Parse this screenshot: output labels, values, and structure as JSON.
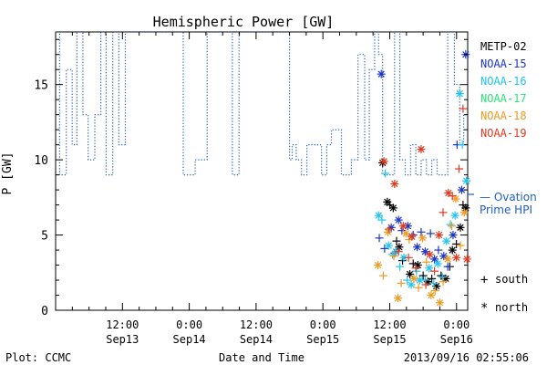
{
  "footer": {
    "plot_credit": "Plot: CCMC",
    "timestamp": "2013/09/16 02:55:06"
  },
  "marker_key": {
    "south_symbol": "+",
    "south_label": "south",
    "north_symbol": "*",
    "north_label": "north"
  },
  "colors": {
    "axis": "#000000",
    "ovation": "#1f5fbf",
    "METP-02": "#000000",
    "NOAA-15": "#1c36c8",
    "NOAA-16": "#22c4ee",
    "NOAA-17": "#2ee07a",
    "NOAA-18": "#ee9a20",
    "NOAA-19": "#e03a20"
  },
  "chart_data": {
    "type": "line",
    "title": "Hemispheric Power [GW]",
    "xlabel": "Date and Time",
    "ylabel": "P [GW]",
    "xlim": [
      0,
      62
    ],
    "ylim": [
      0,
      18.5
    ],
    "grid": false,
    "y_ticks": [
      0,
      5,
      10,
      15
    ],
    "x_ticks": [
      {
        "x": 12,
        "line1": "12:00",
        "line2": "Sep13"
      },
      {
        "x": 24,
        "line1": "0:00",
        "line2": "Sep14"
      },
      {
        "x": 36,
        "line1": "12:00",
        "line2": "Sep14"
      },
      {
        "x": 48,
        "line1": "0:00",
        "line2": "Sep15"
      },
      {
        "x": 60,
        "line1": "12:00",
        "line2": "Sep15"
      },
      {
        "x": 72,
        "line1": "0:00",
        "line2": "Sep16"
      }
    ],
    "legend_position": "right",
    "legend": [
      "METP-02",
      "NOAA-15",
      "NOAA-16",
      "NOAA-17",
      "NOAA-18",
      "NOAA-19"
    ],
    "ovation_label_line1": "— Ovation",
    "ovation_label_line2": "Prime HPI",
    "ovation_line": [
      {
        "x": 0.0,
        "y": 18.5
      },
      {
        "x": 0.6,
        "y": 18.5
      },
      {
        "x": 0.6,
        "y": 9.0
      },
      {
        "x": 1.6,
        "y": 9.0
      },
      {
        "x": 1.6,
        "y": 16.0
      },
      {
        "x": 2.5,
        "y": 16.0
      },
      {
        "x": 2.5,
        "y": 11.0
      },
      {
        "x": 3.2,
        "y": 11.0
      },
      {
        "x": 3.2,
        "y": 18.5
      },
      {
        "x": 4.1,
        "y": 18.5
      },
      {
        "x": 4.1,
        "y": 13.0
      },
      {
        "x": 4.9,
        "y": 13.0
      },
      {
        "x": 4.9,
        "y": 10.0
      },
      {
        "x": 5.9,
        "y": 10.0
      },
      {
        "x": 5.9,
        "y": 13.0
      },
      {
        "x": 6.8,
        "y": 13.0
      },
      {
        "x": 6.8,
        "y": 18.5
      },
      {
        "x": 7.6,
        "y": 18.5
      },
      {
        "x": 7.6,
        "y": 9.0
      },
      {
        "x": 8.6,
        "y": 9.0
      },
      {
        "x": 8.6,
        "y": 18.5
      },
      {
        "x": 9.5,
        "y": 18.5
      },
      {
        "x": 9.5,
        "y": 11.0
      },
      {
        "x": 10.5,
        "y": 11.0
      },
      {
        "x": 10.5,
        "y": 18.5
      },
      {
        "x": 11.4,
        "y": 18.5
      },
      {
        "x": 11.4,
        "y": 18.5
      },
      {
        "x": 19.2,
        "y": 18.5
      },
      {
        "x": 19.2,
        "y": 9.0
      },
      {
        "x": 21.0,
        "y": 9.0
      },
      {
        "x": 21.0,
        "y": 10.0
      },
      {
        "x": 22.8,
        "y": 10.0
      },
      {
        "x": 22.8,
        "y": 18.5
      },
      {
        "x": 26.6,
        "y": 18.5
      },
      {
        "x": 26.6,
        "y": 9.0
      },
      {
        "x": 27.6,
        "y": 9.0
      },
      {
        "x": 27.6,
        "y": 18.5
      },
      {
        "x": 35.2,
        "y": 18.5
      },
      {
        "x": 35.2,
        "y": 10.0
      },
      {
        "x": 35.6,
        "y": 10.0
      },
      {
        "x": 35.6,
        "y": 11.0
      },
      {
        "x": 36.2,
        "y": 11.0
      },
      {
        "x": 36.2,
        "y": 10.0
      },
      {
        "x": 37.0,
        "y": 10.0
      },
      {
        "x": 37.0,
        "y": 9.0
      },
      {
        "x": 37.8,
        "y": 9.0
      },
      {
        "x": 37.8,
        "y": 11.0
      },
      {
        "x": 40.0,
        "y": 11.0
      },
      {
        "x": 40.0,
        "y": 9.0
      },
      {
        "x": 40.8,
        "y": 9.0
      },
      {
        "x": 40.8,
        "y": 11.0
      },
      {
        "x": 41.5,
        "y": 11.0
      },
      {
        "x": 41.5,
        "y": 12.0
      },
      {
        "x": 43.0,
        "y": 12.0
      },
      {
        "x": 43.0,
        "y": 9.0
      },
      {
        "x": 44.5,
        "y": 9.0
      },
      {
        "x": 44.5,
        "y": 10.0
      },
      {
        "x": 45.5,
        "y": 10.0
      },
      {
        "x": 45.5,
        "y": 17.0
      },
      {
        "x": 46.5,
        "y": 17.0
      },
      {
        "x": 46.5,
        "y": 10.0
      },
      {
        "x": 47.2,
        "y": 10.0
      },
      {
        "x": 47.2,
        "y": 16.0
      },
      {
        "x": 48.0,
        "y": 16.0
      },
      {
        "x": 48.0,
        "y": 18.5
      },
      {
        "x": 48.6,
        "y": 18.5
      },
      {
        "x": 48.6,
        "y": 17.0
      },
      {
        "x": 49.2,
        "y": 17.0
      },
      {
        "x": 49.2,
        "y": 9.0
      },
      {
        "x": 51.0,
        "y": 9.0
      },
      {
        "x": 51.0,
        "y": 18.5
      },
      {
        "x": 51.8,
        "y": 18.5
      },
      {
        "x": 51.8,
        "y": 10.0
      },
      {
        "x": 52.6,
        "y": 10.0
      },
      {
        "x": 52.6,
        "y": 9.0
      },
      {
        "x": 53.4,
        "y": 9.0
      },
      {
        "x": 53.4,
        "y": 11.0
      },
      {
        "x": 54.2,
        "y": 11.0
      },
      {
        "x": 54.2,
        "y": 9.0
      },
      {
        "x": 55.0,
        "y": 9.0
      },
      {
        "x": 55.0,
        "y": 10.0
      },
      {
        "x": 55.8,
        "y": 10.0
      },
      {
        "x": 55.8,
        "y": 9.0
      },
      {
        "x": 56.6,
        "y": 9.0
      },
      {
        "x": 56.6,
        "y": 10.0
      },
      {
        "x": 57.4,
        "y": 10.0
      },
      {
        "x": 57.4,
        "y": 9.0
      },
      {
        "x": 59.0,
        "y": 9.0
      },
      {
        "x": 59.0,
        "y": 18.5
      },
      {
        "x": 60.0,
        "y": 18.5
      },
      {
        "x": 60.0,
        "y": 15.0
      },
      {
        "x": 60.8,
        "y": 15.0
      },
      {
        "x": 60.8,
        "y": 11.0
      },
      {
        "x": 61.4,
        "y": 11.0
      },
      {
        "x": 61.4,
        "y": 13.0
      },
      {
        "x": 62.0,
        "y": 13.0
      }
    ],
    "series": [
      {
        "name": "METP-02",
        "points": [
          {
            "x": 49.2,
            "y": 9.8,
            "hemisphere": "north"
          },
          {
            "x": 49.9,
            "y": 7.2,
            "hemisphere": "north"
          },
          {
            "x": 50.3,
            "y": 7.0,
            "hemisphere": "south"
          },
          {
            "x": 50.8,
            "y": 6.8,
            "hemisphere": "north"
          },
          {
            "x": 51.3,
            "y": 4.6,
            "hemisphere": "south"
          },
          {
            "x": 51.7,
            "y": 4.2,
            "hemisphere": "north"
          },
          {
            "x": 52.2,
            "y": 3.3,
            "hemisphere": "south"
          },
          {
            "x": 53.3,
            "y": 2.4,
            "hemisphere": "north"
          },
          {
            "x": 53.8,
            "y": 3.1,
            "hemisphere": "south"
          },
          {
            "x": 54.5,
            "y": 3.0,
            "hemisphere": "north"
          },
          {
            "x": 55.3,
            "y": 2.3,
            "hemisphere": "south"
          },
          {
            "x": 56.0,
            "y": 1.9,
            "hemisphere": "north"
          },
          {
            "x": 56.6,
            "y": 2.1,
            "hemisphere": "south"
          },
          {
            "x": 57.3,
            "y": 1.6,
            "hemisphere": "north"
          },
          {
            "x": 58.0,
            "y": 2.3,
            "hemisphere": "south"
          },
          {
            "x": 58.7,
            "y": 2.1,
            "hemisphere": "north"
          },
          {
            "x": 59.3,
            "y": 2.9,
            "hemisphere": "south"
          },
          {
            "x": 59.7,
            "y": 4.0,
            "hemisphere": "north"
          },
          {
            "x": 60.3,
            "y": 4.4,
            "hemisphere": "south"
          },
          {
            "x": 60.9,
            "y": 5.5,
            "hemisphere": "north"
          },
          {
            "x": 61.3,
            "y": 7.0,
            "hemisphere": "south"
          },
          {
            "x": 61.7,
            "y": 6.8,
            "hemisphere": "north"
          }
        ]
      },
      {
        "name": "NOAA-15",
        "points": [
          {
            "x": 48.7,
            "y": 4.8,
            "hemisphere": "south"
          },
          {
            "x": 49.0,
            "y": 15.7,
            "hemisphere": "north"
          },
          {
            "x": 49.5,
            "y": 4.1,
            "hemisphere": "south"
          },
          {
            "x": 50.5,
            "y": 5.5,
            "hemisphere": "north"
          },
          {
            "x": 51.0,
            "y": 3.8,
            "hemisphere": "south"
          },
          {
            "x": 51.6,
            "y": 6.0,
            "hemisphere": "north"
          },
          {
            "x": 52.1,
            "y": 5.3,
            "hemisphere": "south"
          },
          {
            "x": 53.0,
            "y": 5.6,
            "hemisphere": "north"
          },
          {
            "x": 53.8,
            "y": 5.0,
            "hemisphere": "south"
          },
          {
            "x": 54.4,
            "y": 4.2,
            "hemisphere": "north"
          },
          {
            "x": 55.0,
            "y": 5.2,
            "hemisphere": "south"
          },
          {
            "x": 55.6,
            "y": 3.9,
            "hemisphere": "north"
          },
          {
            "x": 56.4,
            "y": 5.1,
            "hemisphere": "south"
          },
          {
            "x": 57.0,
            "y": 3.4,
            "hemisphere": "north"
          },
          {
            "x": 57.6,
            "y": 4.0,
            "hemisphere": "south"
          },
          {
            "x": 58.4,
            "y": 3.6,
            "hemisphere": "north"
          },
          {
            "x": 59.0,
            "y": 2.9,
            "hemisphere": "south"
          },
          {
            "x": 59.8,
            "y": 5.0,
            "hemisphere": "north"
          },
          {
            "x": 60.4,
            "y": 11.0,
            "hemisphere": "south"
          },
          {
            "x": 61.1,
            "y": 8.0,
            "hemisphere": "north"
          },
          {
            "x": 61.7,
            "y": 17.0,
            "hemisphere": "north"
          }
        ]
      },
      {
        "name": "NOAA-16",
        "points": [
          {
            "x": 48.6,
            "y": 6.3,
            "hemisphere": "north"
          },
          {
            "x": 49.1,
            "y": 6.0,
            "hemisphere": "south"
          },
          {
            "x": 49.6,
            "y": 9.1,
            "hemisphere": "south"
          },
          {
            "x": 50.1,
            "y": 4.3,
            "hemisphere": "north"
          },
          {
            "x": 50.7,
            "y": 3.7,
            "hemisphere": "south"
          },
          {
            "x": 51.2,
            "y": 3.9,
            "hemisphere": "north"
          },
          {
            "x": 51.8,
            "y": 2.9,
            "hemisphere": "south"
          },
          {
            "x": 52.4,
            "y": 3.5,
            "hemisphere": "north"
          },
          {
            "x": 52.9,
            "y": 2.0,
            "hemisphere": "south"
          },
          {
            "x": 53.5,
            "y": 1.7,
            "hemisphere": "north"
          },
          {
            "x": 54.3,
            "y": 2.6,
            "hemisphere": "south"
          },
          {
            "x": 54.8,
            "y": 2.0,
            "hemisphere": "north"
          },
          {
            "x": 55.6,
            "y": 2.0,
            "hemisphere": "south"
          },
          {
            "x": 56.2,
            "y": 2.8,
            "hemisphere": "north"
          },
          {
            "x": 56.9,
            "y": 1.8,
            "hemisphere": "south"
          },
          {
            "x": 57.5,
            "y": 3.1,
            "hemisphere": "north"
          },
          {
            "x": 58.2,
            "y": 2.2,
            "hemisphere": "south"
          },
          {
            "x": 58.8,
            "y": 4.6,
            "hemisphere": "north"
          },
          {
            "x": 59.4,
            "y": 5.7,
            "hemisphere": "south"
          },
          {
            "x": 60.1,
            "y": 6.3,
            "hemisphere": "north"
          },
          {
            "x": 60.8,
            "y": 14.4,
            "hemisphere": "north"
          },
          {
            "x": 61.2,
            "y": 11.0,
            "hemisphere": "south"
          },
          {
            "x": 61.8,
            "y": 8.6,
            "hemisphere": "north"
          }
        ]
      },
      {
        "name": "NOAA-18",
        "points": [
          {
            "x": 48.5,
            "y": 3.0,
            "hemisphere": "north"
          },
          {
            "x": 49.3,
            "y": 2.3,
            "hemisphere": "south"
          },
          {
            "x": 50.0,
            "y": 5.2,
            "hemisphere": "north"
          },
          {
            "x": 50.9,
            "y": 3.6,
            "hemisphere": "south"
          },
          {
            "x": 51.5,
            "y": 0.8,
            "hemisphere": "north"
          },
          {
            "x": 52.0,
            "y": 1.8,
            "hemisphere": "south"
          },
          {
            "x": 52.7,
            "y": 5.1,
            "hemisphere": "north"
          },
          {
            "x": 53.2,
            "y": 4.7,
            "hemisphere": "south"
          },
          {
            "x": 53.9,
            "y": 2.1,
            "hemisphere": "north"
          },
          {
            "x": 54.6,
            "y": 1.5,
            "hemisphere": "south"
          },
          {
            "x": 55.2,
            "y": 4.8,
            "hemisphere": "north"
          },
          {
            "x": 55.8,
            "y": 3.2,
            "hemisphere": "south"
          },
          {
            "x": 56.5,
            "y": 1.0,
            "hemisphere": "north"
          },
          {
            "x": 57.1,
            "y": 1.3,
            "hemisphere": "south"
          },
          {
            "x": 57.8,
            "y": 0.5,
            "hemisphere": "north"
          },
          {
            "x": 58.3,
            "y": 1.9,
            "hemisphere": "south"
          },
          {
            "x": 59.0,
            "y": 3.4,
            "hemisphere": "north"
          },
          {
            "x": 59.6,
            "y": 5.6,
            "hemisphere": "south"
          },
          {
            "x": 60.2,
            "y": 7.4,
            "hemisphere": "north"
          },
          {
            "x": 60.9,
            "y": 4.3,
            "hemisphere": "south"
          },
          {
            "x": 61.5,
            "y": 6.5,
            "hemisphere": "north"
          }
        ]
      },
      {
        "name": "NOAA-19",
        "points": [
          {
            "x": 49.4,
            "y": 9.9,
            "hemisphere": "north"
          },
          {
            "x": 50.2,
            "y": 5.4,
            "hemisphere": "south"
          },
          {
            "x": 51.0,
            "y": 8.4,
            "hemisphere": "north"
          },
          {
            "x": 51.6,
            "y": 3.9,
            "hemisphere": "south"
          },
          {
            "x": 52.3,
            "y": 5.6,
            "hemisphere": "north"
          },
          {
            "x": 53.1,
            "y": 3.5,
            "hemisphere": "south"
          },
          {
            "x": 53.6,
            "y": 4.9,
            "hemisphere": "north"
          },
          {
            "x": 54.2,
            "y": 2.8,
            "hemisphere": "south"
          },
          {
            "x": 55.0,
            "y": 10.7,
            "hemisphere": "north"
          },
          {
            "x": 55.7,
            "y": 1.7,
            "hemisphere": "south"
          },
          {
            "x": 56.3,
            "y": 3.7,
            "hemisphere": "north"
          },
          {
            "x": 57.0,
            "y": 2.6,
            "hemisphere": "south"
          },
          {
            "x": 57.7,
            "y": 5.0,
            "hemisphere": "north"
          },
          {
            "x": 58.3,
            "y": 6.5,
            "hemisphere": "south"
          },
          {
            "x": 59.1,
            "y": 7.8,
            "hemisphere": "north"
          },
          {
            "x": 59.7,
            "y": 7.6,
            "hemisphere": "south"
          },
          {
            "x": 60.3,
            "y": 3.5,
            "hemisphere": "north"
          },
          {
            "x": 60.7,
            "y": 9.4,
            "hemisphere": "south"
          },
          {
            "x": 61.3,
            "y": 13.4,
            "hemisphere": "south"
          },
          {
            "x": 61.9,
            "y": 3.4,
            "hemisphere": "north"
          }
        ]
      }
    ]
  }
}
